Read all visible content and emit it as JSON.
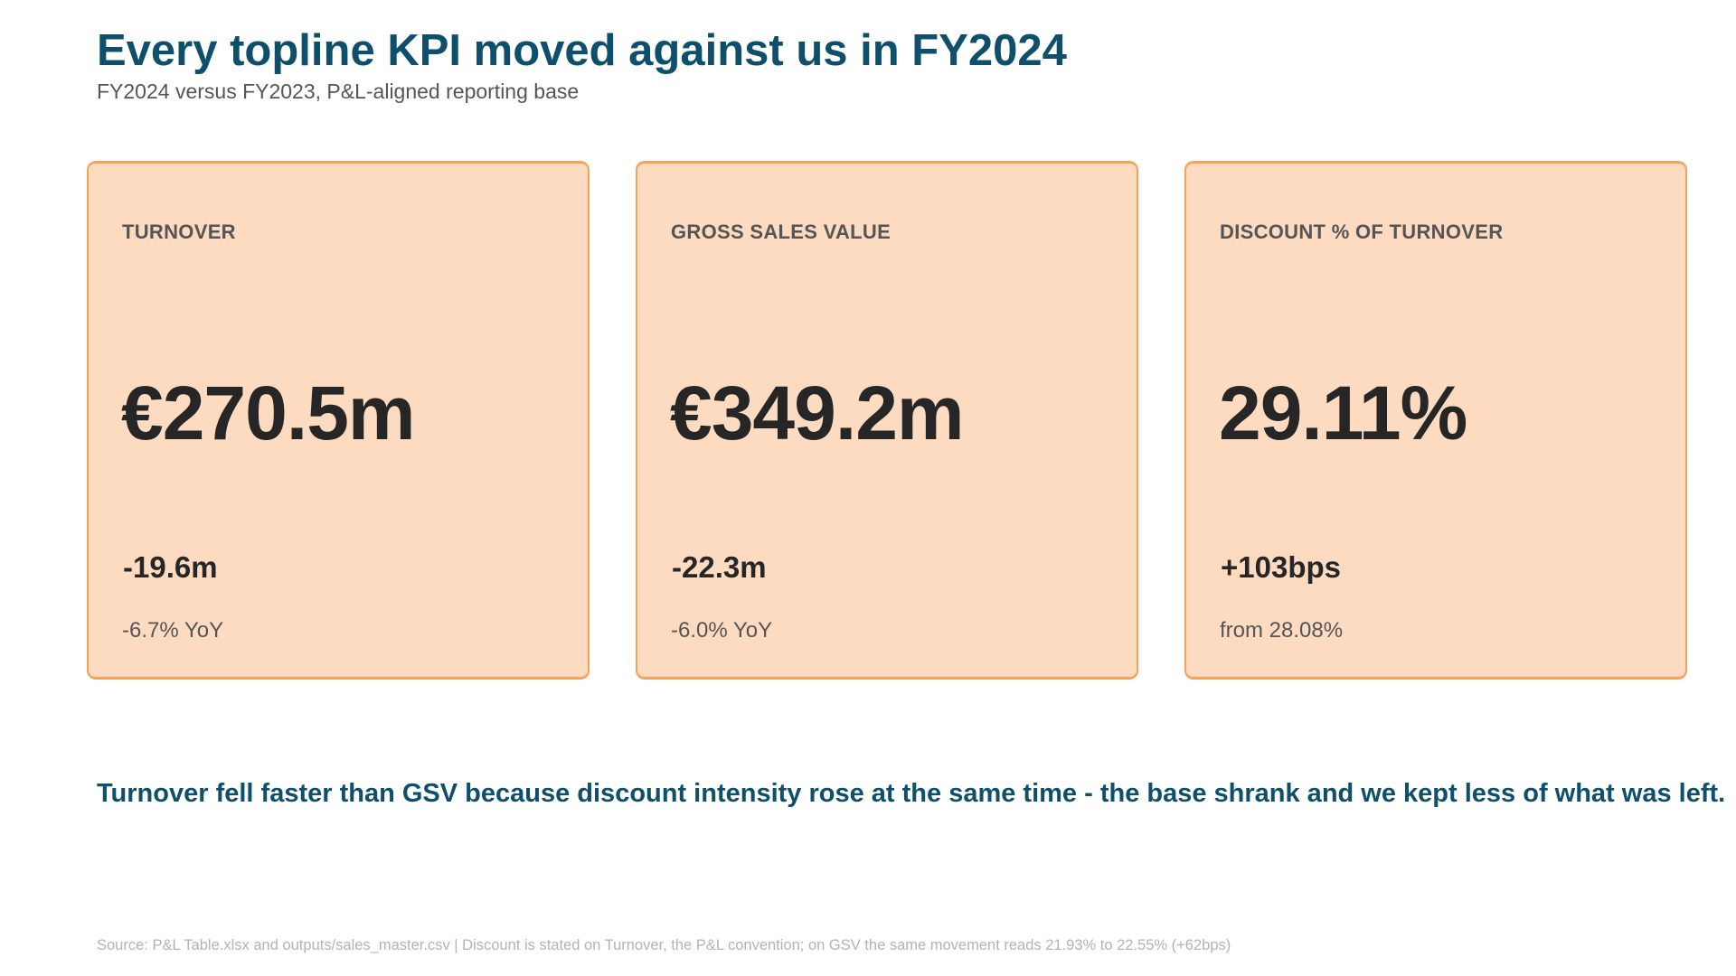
{
  "header": {
    "title": "Every topline KPI moved against us in FY2024",
    "subtitle": "FY2024 versus FY2023, P&L-aligned reporting base"
  },
  "kpis": [
    {
      "label": "TURNOVER",
      "value": "€270.5m",
      "delta": "-19.6m",
      "note": "-6.7% YoY"
    },
    {
      "label": "GROSS SALES VALUE",
      "value": "€349.2m",
      "delta": "-22.3m",
      "note": "-6.0% YoY"
    },
    {
      "label": "DISCOUNT % OF TURNOVER",
      "value": "29.11%",
      "delta": "+103bps",
      "note": "from 28.08%"
    }
  ],
  "takeaway": "Turnover fell faster than GSV because discount intensity rose at the same time - the base shrank and we kept less of what was left.",
  "footer": {
    "source": "Source: P&L Table.xlsx and outputs/sales_master.csv  |  Discount is stated on Turnover, the P&L convention; on GSV the same movement reads 21.93% to 22.55% (+62bps)"
  },
  "colors": {
    "accent": "#0e4f6c",
    "card_fill": "#fddbc0",
    "card_border": "#f7a259",
    "value_text": "#262626",
    "muted_text": "#555555",
    "footnote_text": "#b3b3b3"
  }
}
